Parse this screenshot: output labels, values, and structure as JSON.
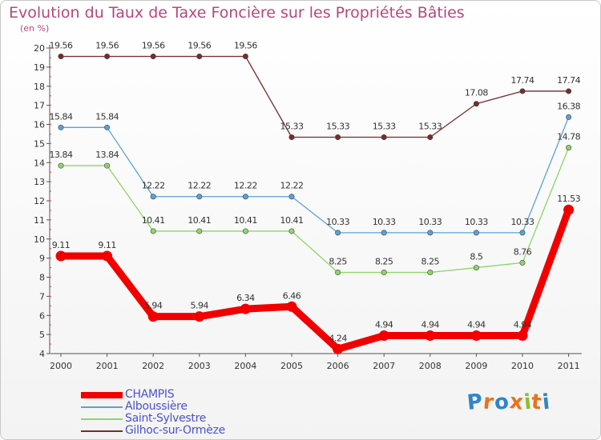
{
  "title": "Evolution du Taux de Taxe Foncière sur les Propriétés Bâties",
  "subtitle": "(en %)",
  "logo": {
    "text": "Proxiti",
    "letters": [
      "P",
      "r",
      "o",
      "x",
      "i",
      "t",
      "i"
    ],
    "colors": [
      "#2e86c8",
      "#e8731c",
      "#2e86c8",
      "#e8731c",
      "#8cbf2c",
      "#e8731c",
      "#2e86c8"
    ]
  },
  "chart_data": {
    "type": "line",
    "title": "Evolution du Taux de Taxe Foncière sur les Propriétés Bâties",
    "ylabel": "(en %)",
    "xlabel": "",
    "x": [
      "2000",
      "2001",
      "2002",
      "2003",
      "2004",
      "2005",
      "2006",
      "2007",
      "2008",
      "2009",
      "2010",
      "2011"
    ],
    "ylim": [
      4,
      20
    ],
    "yticks": [
      "4",
      "5",
      "6",
      "7",
      "8",
      "9",
      "10",
      "11",
      "12",
      "13",
      "14",
      "15",
      "16",
      "17",
      "18",
      "19",
      "20"
    ],
    "grid": false,
    "legend_position": "bottom-left",
    "series": [
      {
        "name": "CHAMPIS",
        "color": "#f20000",
        "values": [
          9.11,
          9.11,
          5.94,
          5.94,
          6.34,
          6.46,
          4.24,
          4.94,
          4.94,
          4.94,
          4.94,
          11.53
        ],
        "labels": [
          "9.11",
          "9.11",
          "5.94",
          "5.94",
          "6.34",
          "6.46",
          "4.24",
          "4.94",
          "4.94",
          "4.94",
          "4.94",
          "11.53"
        ]
      },
      {
        "name": "Alboussière",
        "color": "#5aa1d8",
        "values": [
          15.84,
          15.84,
          12.22,
          12.22,
          12.22,
          12.22,
          10.33,
          10.33,
          10.33,
          10.33,
          10.33,
          16.38
        ],
        "labels": [
          "15.84",
          "15.84",
          "12.22",
          "12.22",
          "12.22",
          "12.22",
          "10.33",
          "10.33",
          "10.33",
          "10.33",
          "10.33",
          "16.38"
        ]
      },
      {
        "name": "Saint-Sylvestre",
        "color": "#8ed46a",
        "values": [
          13.84,
          13.84,
          10.41,
          10.41,
          10.41,
          10.41,
          8.25,
          8.25,
          8.25,
          8.5,
          8.76,
          14.78
        ],
        "labels": [
          "13.84",
          "13.84",
          "10.41",
          "10.41",
          "10.41",
          "10.41",
          "8.25",
          "8.25",
          "8.25",
          "8.5",
          "8.76",
          "14.78"
        ]
      },
      {
        "name": "Gilhoc-sur-Ormèze",
        "color": "#7a2a2a",
        "values": [
          19.56,
          19.56,
          19.56,
          19.56,
          19.56,
          15.33,
          15.33,
          15.33,
          15.33,
          17.08,
          17.74,
          17.74
        ],
        "labels": [
          "19.56",
          "19.56",
          "19.56",
          "19.56",
          "19.56",
          "15.33",
          "15.33",
          "15.33",
          "15.33",
          "17.08",
          "17.74",
          "17.74"
        ]
      }
    ]
  }
}
